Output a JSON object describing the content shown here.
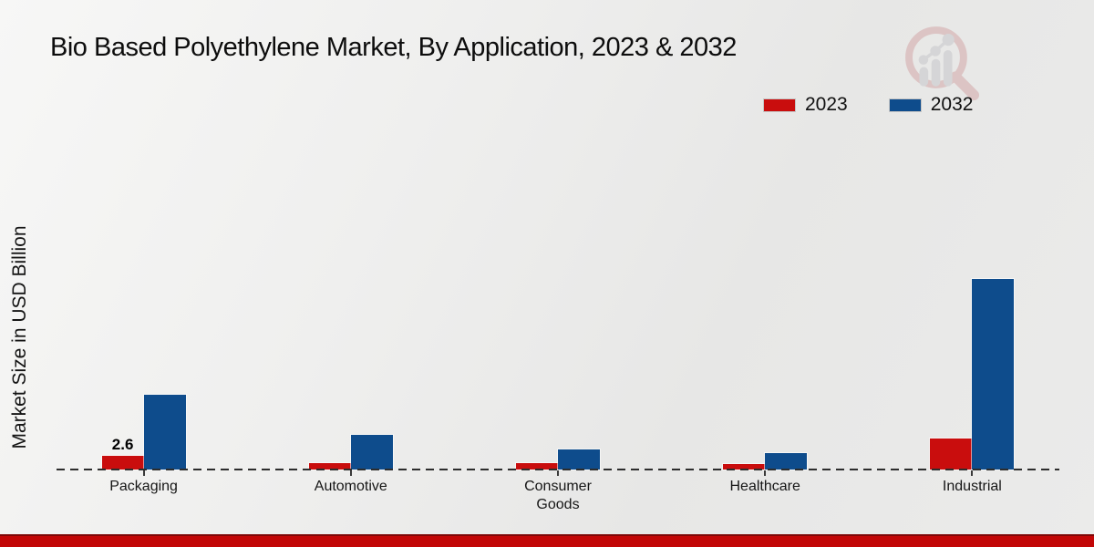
{
  "chart_data": {
    "type": "bar",
    "title": "Bio Based Polyethylene Market, By Application, 2023 & 2032",
    "xlabel": "",
    "ylabel": "Market Size in USD Billion",
    "categories": [
      "Packaging",
      "Automotive",
      "Consumer Goods",
      "Healthcare",
      "Industrial"
    ],
    "series": [
      {
        "name": "2023",
        "color": "#c90d0d",
        "values": [
          2.6,
          1.2,
          1.2,
          1.0,
          5.9
        ]
      },
      {
        "name": "2032",
        "color": "#0e4c8c",
        "values": [
          14.2,
          6.6,
          3.8,
          3.1,
          36.2
        ]
      }
    ],
    "bar_labels": [
      {
        "series": "2023",
        "category": "Packaging",
        "text": "2.6"
      }
    ],
    "ylim": [
      0,
      40
    ],
    "grid": false,
    "axis_style": "dashed-baseline-only",
    "legend_position": "top-right"
  },
  "branding": {
    "watermark": "market-research-future-logo",
    "footer_accent_color": "#c20606"
  }
}
